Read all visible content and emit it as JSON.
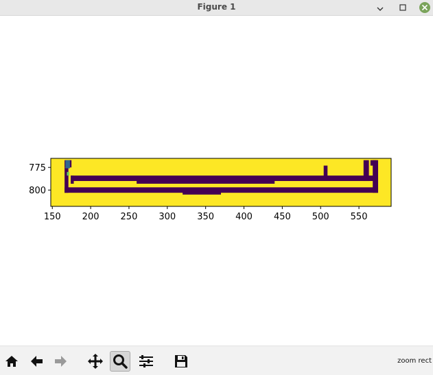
{
  "window": {
    "title": "Figure 1",
    "controls": [
      "minimize",
      "maximize",
      "close"
    ]
  },
  "colors": {
    "background": "#fde725",
    "wall": "#440154",
    "marker_blue": "#31688e",
    "marker_green": "#6ece58",
    "close_button": "#7aa35a"
  },
  "toolbar": {
    "buttons": [
      "home-icon",
      "back-icon",
      "forward-icon",
      "pan-icon",
      "zoom-icon",
      "configure-icon",
      "save-icon"
    ],
    "active": "zoom-icon",
    "status": "zoom rect"
  },
  "chart_data": {
    "type": "heatmap",
    "colormap": "viridis",
    "x_ticks": [
      "150",
      "200",
      "250",
      "300",
      "350",
      "400",
      "450",
      "500",
      "550"
    ],
    "y_ticks": [
      "775",
      "800"
    ],
    "xlim": [
      148,
      592
    ],
    "ylim": [
      818,
      765
    ],
    "grid": false,
    "segments": [
      {
        "kind": "wall",
        "x": [
          166,
          175
        ],
        "y": [
          767,
          775
        ]
      },
      {
        "kind": "wall",
        "x": [
          166,
          171
        ],
        "y": [
          775,
          803
        ]
      },
      {
        "kind": "wall",
        "x": [
          166,
          575
        ],
        "y": [
          797,
          803
        ]
      },
      {
        "kind": "wall",
        "x": [
          174,
          571
        ],
        "y": [
          784,
          790
        ]
      },
      {
        "kind": "wall",
        "x": [
          174,
          178
        ],
        "y": [
          784,
          793
        ]
      },
      {
        "kind": "wall",
        "x": [
          260,
          440
        ],
        "y": [
          786,
          793
        ]
      },
      {
        "kind": "wall",
        "x": [
          568,
          575
        ],
        "y": [
          767,
          803
        ]
      },
      {
        "kind": "wall",
        "x": [
          556,
          563
        ],
        "y": [
          767,
          790
        ]
      },
      {
        "kind": "wall",
        "x": [
          565,
          573
        ],
        "y": [
          767,
          773
        ]
      },
      {
        "kind": "wall",
        "x": [
          504,
          509
        ],
        "y": [
          773,
          785
        ]
      },
      {
        "kind": "wall",
        "x": [
          320,
          370
        ],
        "y": [
          802,
          805
        ]
      },
      {
        "kind": "marker",
        "x": [
          167,
          173
        ],
        "y": [
          767,
          776
        ]
      },
      {
        "kind": "marker",
        "x": [
          169,
          172
        ],
        "y": [
          780,
          784
        ]
      }
    ]
  }
}
